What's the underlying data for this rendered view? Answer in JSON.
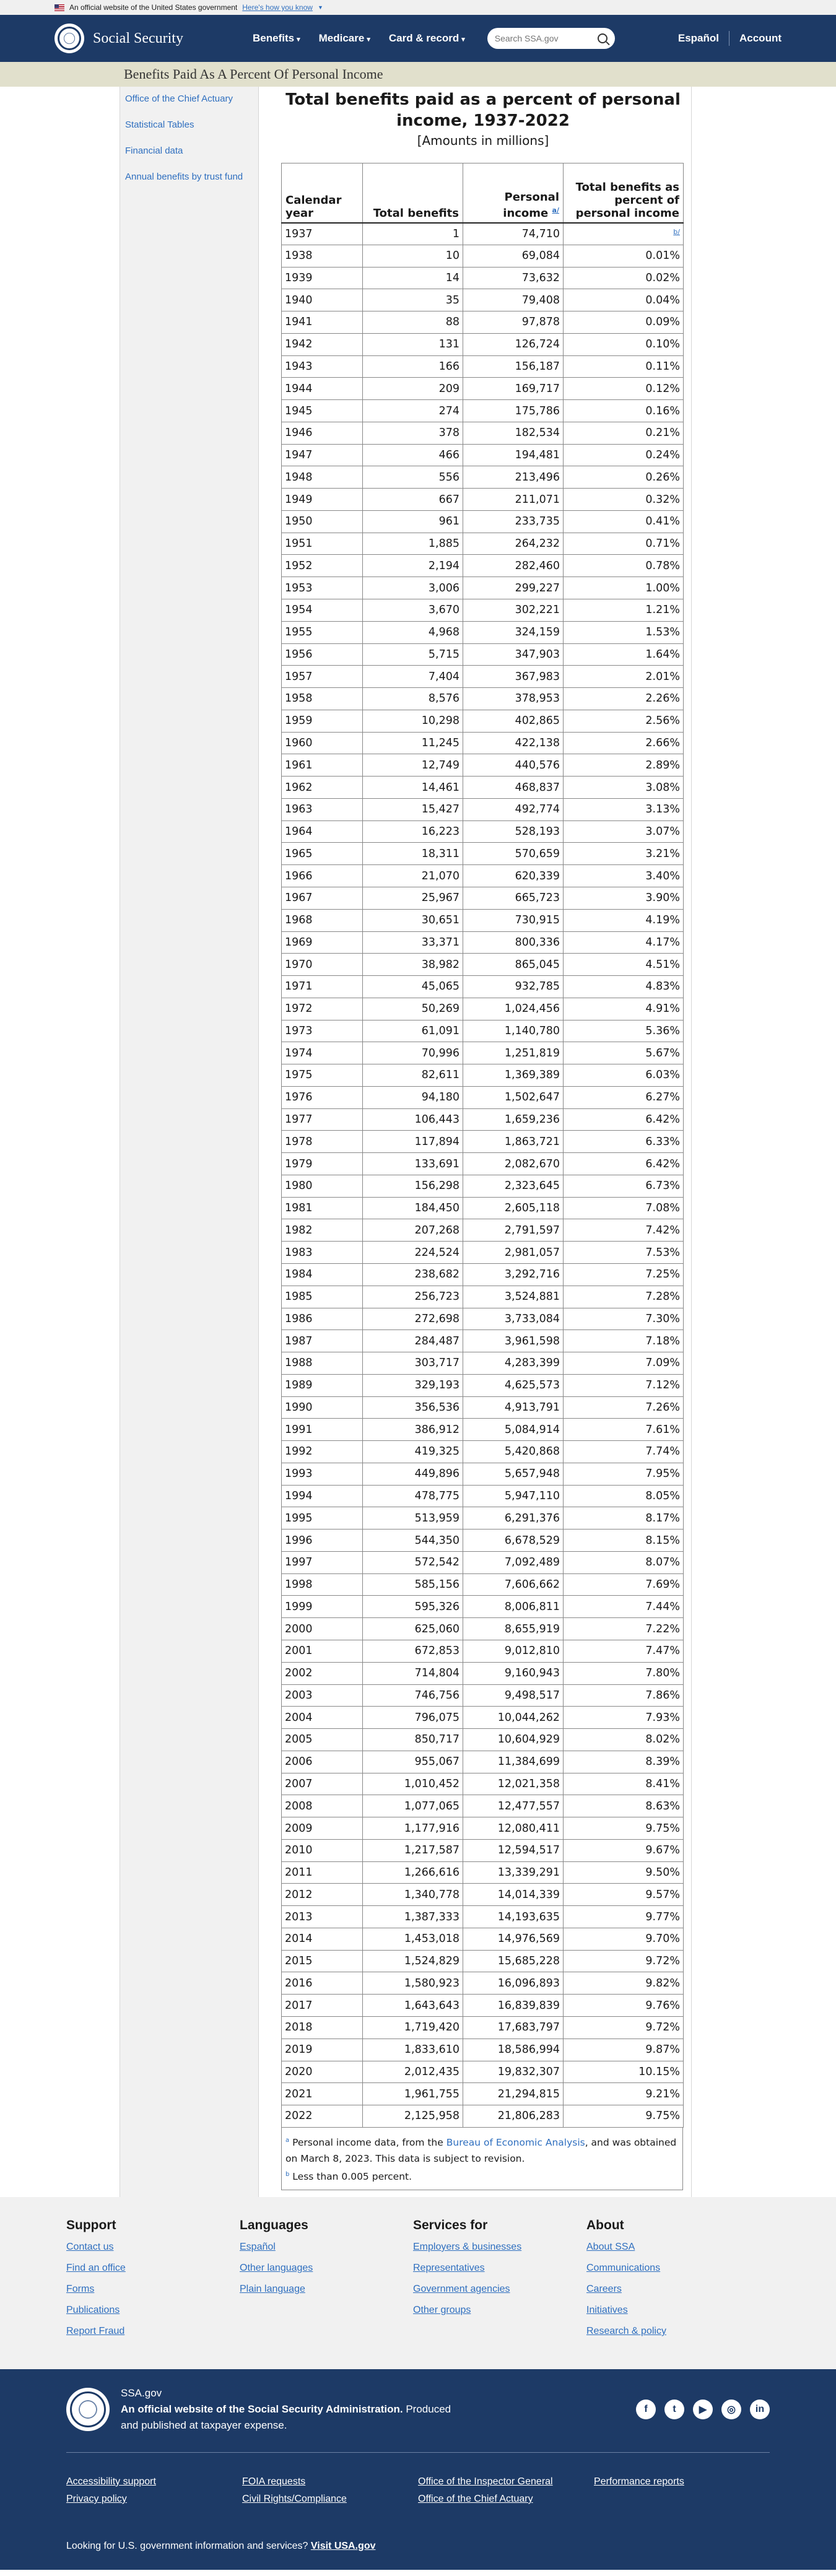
{
  "banner": {
    "text": "An official website of the United States government",
    "link": "Here's how you know"
  },
  "header": {
    "site_name": "Social Security",
    "nav": [
      "Benefits",
      "Medicare",
      "Card & record"
    ],
    "search_placeholder": "Search SSA.gov",
    "espanol": "Español",
    "account": "Account"
  },
  "page_title": "Benefits Paid As A Percent Of Personal Income",
  "sidebar": [
    "Office of the Chief Actuary",
    "Statistical Tables",
    "Financial data",
    "Annual benefits by trust fund"
  ],
  "table": {
    "title": "Total benefits paid as a percent of personal income, 1937-2022",
    "subtitle": "[Amounts in millions]",
    "headers": {
      "year": "Calendar year",
      "benefits": "Total benefits",
      "income": "Personal income",
      "percent": "Total benefits as percent of personal income",
      "note_a": "a/",
      "note_b": "b/"
    },
    "rows": [
      [
        "1937",
        "1",
        "74,710",
        "b/"
      ],
      [
        "1938",
        "10",
        "69,084",
        "0.01%"
      ],
      [
        "1939",
        "14",
        "73,632",
        "0.02%"
      ],
      [
        "1940",
        "35",
        "79,408",
        "0.04%"
      ],
      [
        "1941",
        "88",
        "97,878",
        "0.09%"
      ],
      [
        "1942",
        "131",
        "126,724",
        "0.10%"
      ],
      [
        "1943",
        "166",
        "156,187",
        "0.11%"
      ],
      [
        "1944",
        "209",
        "169,717",
        "0.12%"
      ],
      [
        "1945",
        "274",
        "175,786",
        "0.16%"
      ],
      [
        "1946",
        "378",
        "182,534",
        "0.21%"
      ],
      [
        "1947",
        "466",
        "194,481",
        "0.24%"
      ],
      [
        "1948",
        "556",
        "213,496",
        "0.26%"
      ],
      [
        "1949",
        "667",
        "211,071",
        "0.32%"
      ],
      [
        "1950",
        "961",
        "233,735",
        "0.41%"
      ],
      [
        "1951",
        "1,885",
        "264,232",
        "0.71%"
      ],
      [
        "1952",
        "2,194",
        "282,460",
        "0.78%"
      ],
      [
        "1953",
        "3,006",
        "299,227",
        "1.00%"
      ],
      [
        "1954",
        "3,670",
        "302,221",
        "1.21%"
      ],
      [
        "1955",
        "4,968",
        "324,159",
        "1.53%"
      ],
      [
        "1956",
        "5,715",
        "347,903",
        "1.64%"
      ],
      [
        "1957",
        "7,404",
        "367,983",
        "2.01%"
      ],
      [
        "1958",
        "8,576",
        "378,953",
        "2.26%"
      ],
      [
        "1959",
        "10,298",
        "402,865",
        "2.56%"
      ],
      [
        "1960",
        "11,245",
        "422,138",
        "2.66%"
      ],
      [
        "1961",
        "12,749",
        "440,576",
        "2.89%"
      ],
      [
        "1962",
        "14,461",
        "468,837",
        "3.08%"
      ],
      [
        "1963",
        "15,427",
        "492,774",
        "3.13%"
      ],
      [
        "1964",
        "16,223",
        "528,193",
        "3.07%"
      ],
      [
        "1965",
        "18,311",
        "570,659",
        "3.21%"
      ],
      [
        "1966",
        "21,070",
        "620,339",
        "3.40%"
      ],
      [
        "1967",
        "25,967",
        "665,723",
        "3.90%"
      ],
      [
        "1968",
        "30,651",
        "730,915",
        "4.19%"
      ],
      [
        "1969",
        "33,371",
        "800,336",
        "4.17%"
      ],
      [
        "1970",
        "38,982",
        "865,045",
        "4.51%"
      ],
      [
        "1971",
        "45,065",
        "932,785",
        "4.83%"
      ],
      [
        "1972",
        "50,269",
        "1,024,456",
        "4.91%"
      ],
      [
        "1973",
        "61,091",
        "1,140,780",
        "5.36%"
      ],
      [
        "1974",
        "70,996",
        "1,251,819",
        "5.67%"
      ],
      [
        "1975",
        "82,611",
        "1,369,389",
        "6.03%"
      ],
      [
        "1976",
        "94,180",
        "1,502,647",
        "6.27%"
      ],
      [
        "1977",
        "106,443",
        "1,659,236",
        "6.42%"
      ],
      [
        "1978",
        "117,894",
        "1,863,721",
        "6.33%"
      ],
      [
        "1979",
        "133,691",
        "2,082,670",
        "6.42%"
      ],
      [
        "1980",
        "156,298",
        "2,323,645",
        "6.73%"
      ],
      [
        "1981",
        "184,450",
        "2,605,118",
        "7.08%"
      ],
      [
        "1982",
        "207,268",
        "2,791,597",
        "7.42%"
      ],
      [
        "1983",
        "224,524",
        "2,981,057",
        "7.53%"
      ],
      [
        "1984",
        "238,682",
        "3,292,716",
        "7.25%"
      ],
      [
        "1985",
        "256,723",
        "3,524,881",
        "7.28%"
      ],
      [
        "1986",
        "272,698",
        "3,733,084",
        "7.30%"
      ],
      [
        "1987",
        "284,487",
        "3,961,598",
        "7.18%"
      ],
      [
        "1988",
        "303,717",
        "4,283,399",
        "7.09%"
      ],
      [
        "1989",
        "329,193",
        "4,625,573",
        "7.12%"
      ],
      [
        "1990",
        "356,536",
        "4,913,791",
        "7.26%"
      ],
      [
        "1991",
        "386,912",
        "5,084,914",
        "7.61%"
      ],
      [
        "1992",
        "419,325",
        "5,420,868",
        "7.74%"
      ],
      [
        "1993",
        "449,896",
        "5,657,948",
        "7.95%"
      ],
      [
        "1994",
        "478,775",
        "5,947,110",
        "8.05%"
      ],
      [
        "1995",
        "513,959",
        "6,291,376",
        "8.17%"
      ],
      [
        "1996",
        "544,350",
        "6,678,529",
        "8.15%"
      ],
      [
        "1997",
        "572,542",
        "7,092,489",
        "8.07%"
      ],
      [
        "1998",
        "585,156",
        "7,606,662",
        "7.69%"
      ],
      [
        "1999",
        "595,326",
        "8,006,811",
        "7.44%"
      ],
      [
        "2000",
        "625,060",
        "8,655,919",
        "7.22%"
      ],
      [
        "2001",
        "672,853",
        "9,012,810",
        "7.47%"
      ],
      [
        "2002",
        "714,804",
        "9,160,943",
        "7.80%"
      ],
      [
        "2003",
        "746,756",
        "9,498,517",
        "7.86%"
      ],
      [
        "2004",
        "796,075",
        "10,044,262",
        "7.93%"
      ],
      [
        "2005",
        "850,717",
        "10,604,929",
        "8.02%"
      ],
      [
        "2006",
        "955,067",
        "11,384,699",
        "8.39%"
      ],
      [
        "2007",
        "1,010,452",
        "12,021,358",
        "8.41%"
      ],
      [
        "2008",
        "1,077,065",
        "12,477,557",
        "8.63%"
      ],
      [
        "2009",
        "1,177,916",
        "12,080,411",
        "9.75%"
      ],
      [
        "2010",
        "1,217,587",
        "12,594,517",
        "9.67%"
      ],
      [
        "2011",
        "1,266,616",
        "13,339,291",
        "9.50%"
      ],
      [
        "2012",
        "1,340,778",
        "14,014,339",
        "9.57%"
      ],
      [
        "2013",
        "1,387,333",
        "14,193,635",
        "9.77%"
      ],
      [
        "2014",
        "1,453,018",
        "14,976,569",
        "9.70%"
      ],
      [
        "2015",
        "1,524,829",
        "15,685,228",
        "9.72%"
      ],
      [
        "2016",
        "1,580,923",
        "16,096,893",
        "9.82%"
      ],
      [
        "2017",
        "1,643,643",
        "16,839,839",
        "9.76%"
      ],
      [
        "2018",
        "1,719,420",
        "17,683,797",
        "9.72%"
      ],
      [
        "2019",
        "1,833,610",
        "18,586,994",
        "9.87%"
      ],
      [
        "2020",
        "2,012,435",
        "19,832,307",
        "10.15%"
      ],
      [
        "2021",
        "1,961,755",
        "21,294,815",
        "9.21%"
      ],
      [
        "2022",
        "2,125,958",
        "21,806,283",
        "9.75%"
      ]
    ],
    "notes": {
      "a_mark": "a",
      "a_pre": "Personal income data, from the ",
      "a_link": "Bureau of Economic Analysis",
      "a_post": ", and was obtained on March 8, 2023. This data is subject to revision.",
      "b_mark": "b",
      "b_text": "Less than 0.005 percent."
    }
  },
  "footer": {
    "columns": [
      {
        "heading": "Support",
        "links": [
          "Contact us",
          "Find an office",
          "Forms",
          "Publications",
          "Report Fraud"
        ]
      },
      {
        "heading": "Languages",
        "links": [
          "Español",
          "Other languages",
          "Plain language"
        ]
      },
      {
        "heading": "Services for",
        "links": [
          "Employers & businesses",
          "Representatives",
          "Government agencies",
          "Other groups"
        ]
      },
      {
        "heading": "About",
        "links": [
          "About SSA",
          "Communications",
          "Careers",
          "Initiatives",
          "Research & policy"
        ]
      }
    ]
  },
  "bottom": {
    "site": "SSA.gov",
    "official_bold": "An official website of the Social Security Administration.",
    "official_rest": " Produced and published at taxpayer expense.",
    "socials": [
      "f",
      "t",
      "▶",
      "◎",
      "in"
    ],
    "links": [
      [
        "Accessibility support",
        "Privacy policy"
      ],
      [
        "FOIA requests",
        "Civil Rights/Compliance"
      ],
      [
        "Office of the Inspector General",
        "Office of the Chief Actuary"
      ],
      [
        "Performance reports"
      ]
    ],
    "usa_text": "Looking for U.S. government information and services?",
    "usa_link": "Visit USA.gov"
  }
}
